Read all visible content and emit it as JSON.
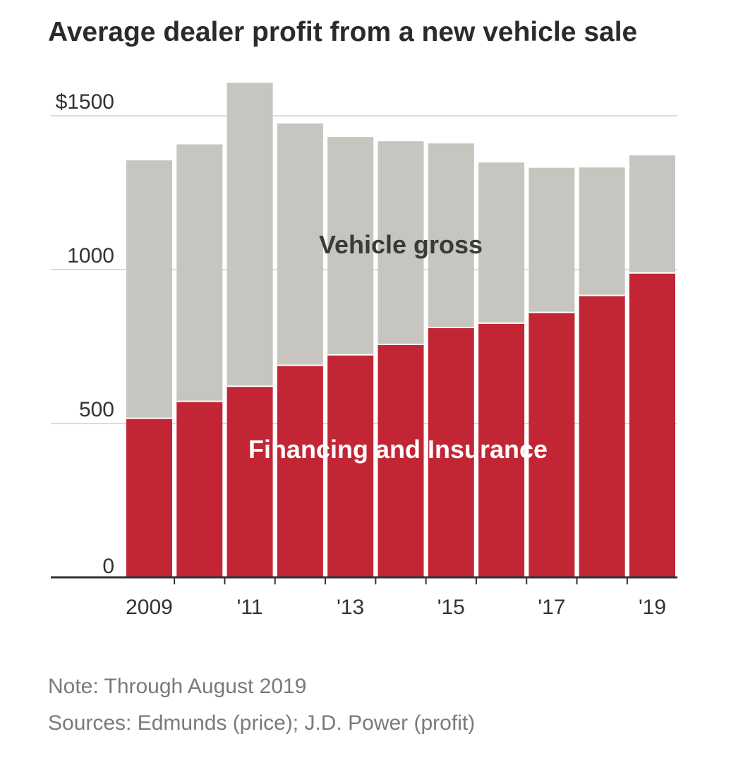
{
  "title": "Average dealer profit from a new vehicle sale",
  "notes": {
    "note": "Note: Through August 2019",
    "sources": "Sources: Edmunds (price); J.D. Power (profit)"
  },
  "chart_data": {
    "type": "bar",
    "stacked": true,
    "categories": [
      "2009",
      "2010",
      "2011",
      "2012",
      "2013",
      "2014",
      "2015",
      "2016",
      "2017",
      "2018",
      "2019"
    ],
    "x_tick_labels": [
      "2009",
      "'11",
      "'13",
      "'15",
      "'17",
      "'19"
    ],
    "series": [
      {
        "name": "Financing and Insurance",
        "color": "#c22534",
        "values": [
          517,
          572,
          621,
          689,
          723,
          757,
          812,
          826,
          861,
          916,
          989
        ]
      },
      {
        "name": "Vehicle gross",
        "color": "#c7c5bf",
        "values": [
          838,
          835,
          986,
          786,
          708,
          660,
          598,
          522,
          470,
          416,
          382
        ]
      }
    ],
    "y_tick_labels": [
      "$1500",
      "1000",
      "500",
      "0"
    ],
    "y_ticks": [
      1500,
      1000,
      500,
      0
    ],
    "ylim": [
      0,
      1500
    ],
    "grid": true,
    "legend": "labels inside bars"
  }
}
